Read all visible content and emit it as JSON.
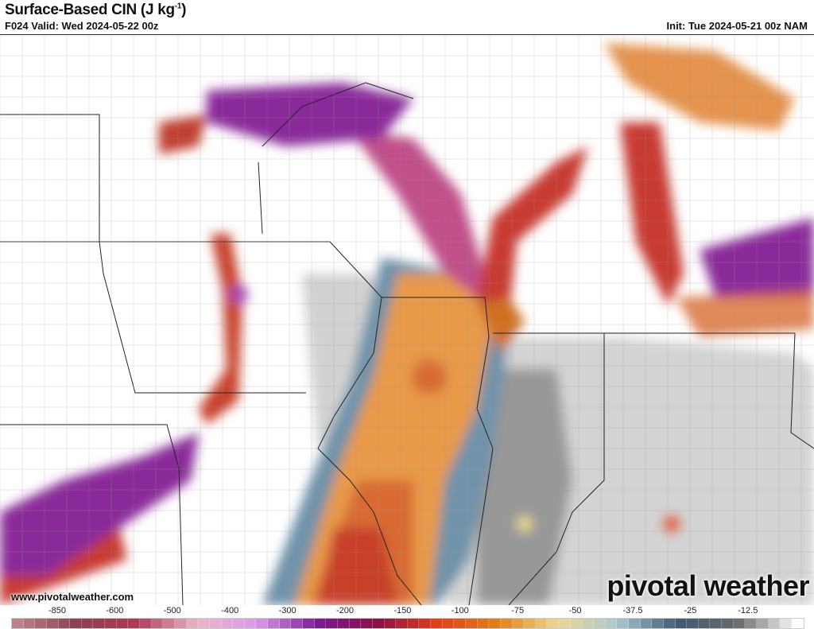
{
  "header": {
    "title": "Surface-Based CIN (J kg",
    "title_sup": "-1",
    "title_end": ")",
    "valid": "F024 Valid: Wed 2024-05-22 00z",
    "init": "Init: Tue 2024-05-21 00z NAM"
  },
  "watermark": {
    "url": "www.pivotalweather.com",
    "logo": "pivotal weather"
  },
  "colorbar": {
    "labels": [
      "-850",
      "-600",
      "-500",
      "-400",
      "-300",
      "-200",
      "-150",
      "-100",
      "-75",
      "-50",
      "-37.5",
      "-25",
      "-12.5"
    ],
    "stops": [
      "#b8838c",
      "#8e3f52",
      "#b03a58",
      "#e8b8c8",
      "#d99ae8",
      "#7a1a96",
      "#8c0f48",
      "#e0401a",
      "#e08018",
      "#ecd890",
      "#a8c8d0",
      "#3e5a74",
      "#6a6a6a",
      "#ffffff"
    ]
  },
  "map": {
    "field": "Surface-Based CIN",
    "colors": {
      "orange": "#e89040",
      "red": "#d04020",
      "purple": "#8a2a9a",
      "blue": "#6a90a8",
      "gray": "#b0b0b0"
    }
  }
}
